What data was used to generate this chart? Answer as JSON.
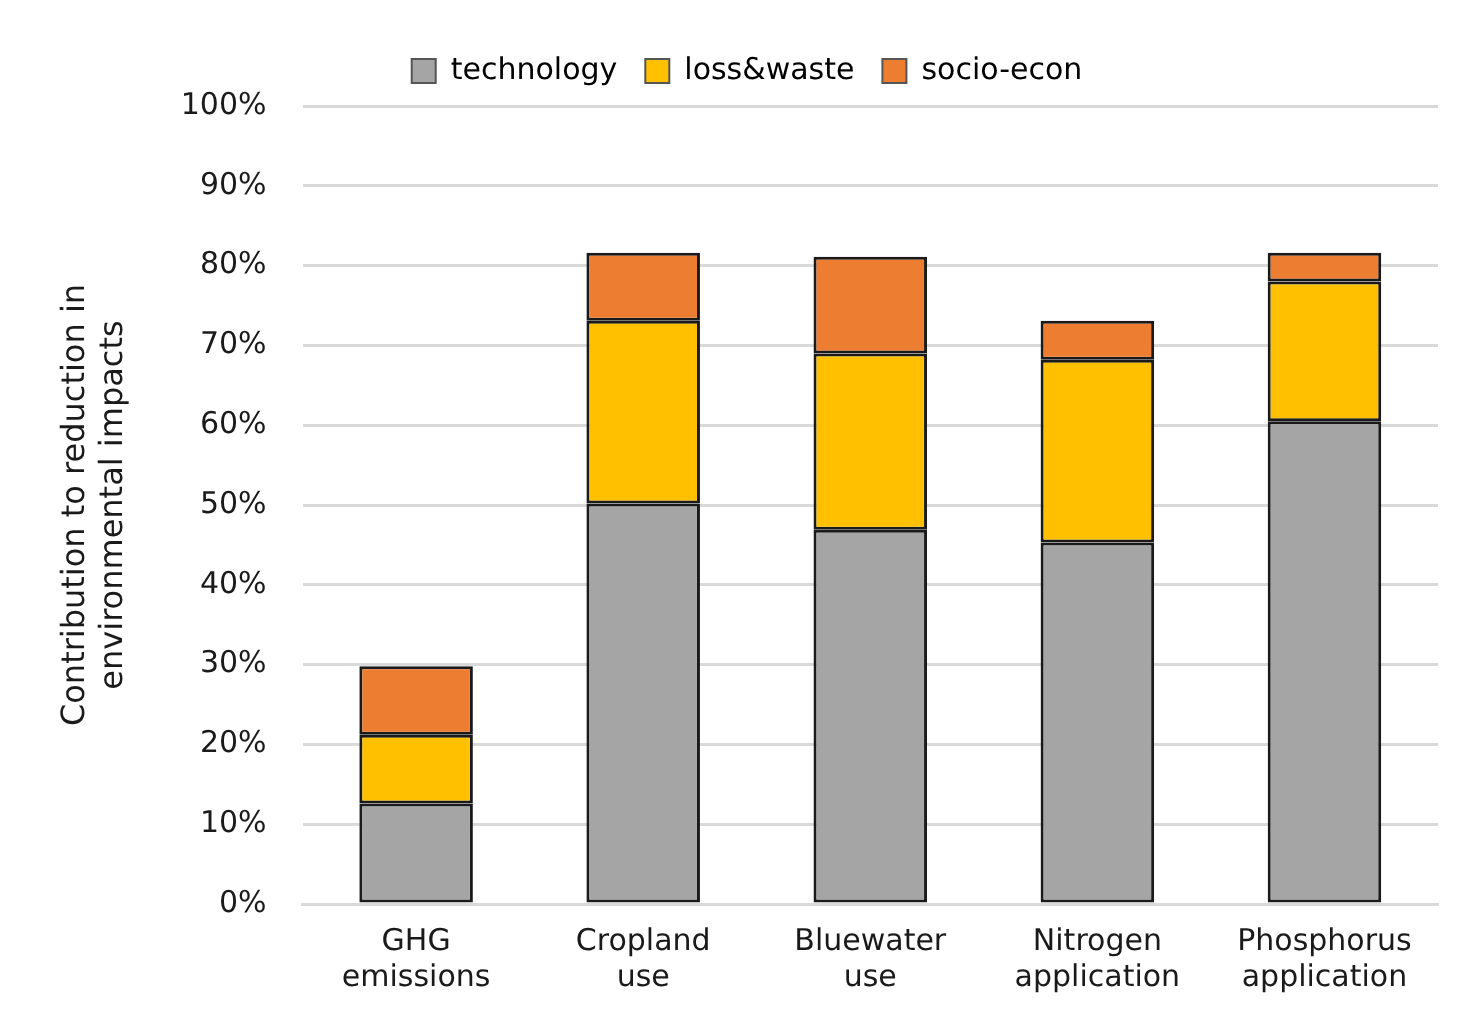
{
  "chart_data": {
    "type": "bar",
    "stacked": true,
    "categories": [
      "GHG emissions",
      "Cropland use",
      "Bluewater use",
      "Nitrogen application",
      "Phosphorus application"
    ],
    "series": [
      {
        "name": "technology",
        "color": "#a5a5a5",
        "values": [
          12.6,
          50.2,
          46.9,
          45.3,
          60.5
        ]
      },
      {
        "name": "loss&waste",
        "color": "#ffc000",
        "values": [
          8.6,
          22.9,
          22.1,
          22.9,
          17.5
        ]
      },
      {
        "name": "socio-econ",
        "color": "#ed7d31",
        "values": [
          8.6,
          8.5,
          12.1,
          4.9,
          3.6
        ]
      }
    ],
    "ylabel": "Contribution to reduction in environmental impacts",
    "ylim": [
      0,
      100
    ],
    "yticks": [
      {
        "value": 0,
        "label": "0%"
      },
      {
        "value": 10,
        "label": "10%"
      },
      {
        "value": 20,
        "label": "20%"
      },
      {
        "value": 30,
        "label": "30%"
      },
      {
        "value": 40,
        "label": "40%"
      },
      {
        "value": 50,
        "label": "50%"
      },
      {
        "value": 60,
        "label": "60%"
      },
      {
        "value": 70,
        "label": "70%"
      },
      {
        "value": 80,
        "label": "80%"
      },
      {
        "value": 90,
        "label": "90%"
      },
      {
        "value": 100,
        "label": "100%"
      }
    ],
    "grid": "y",
    "legend": "top"
  }
}
